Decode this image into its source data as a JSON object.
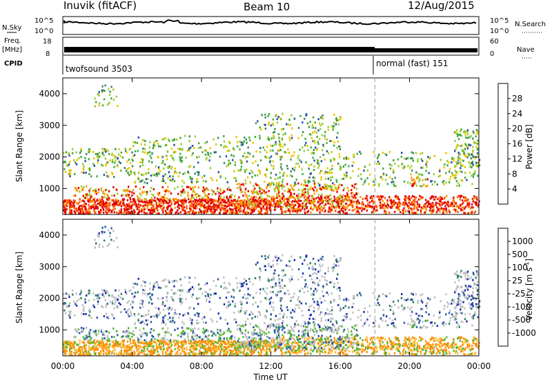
{
  "header": {
    "station": "Inuvik (fitACF)",
    "beam": "Beam 10",
    "date": "12/Aug/2015"
  },
  "top_strip": {
    "left_label": "N.Sky",
    "right_label": "N.Search",
    "ticks": [
      "10^5",
      "10^0"
    ],
    "right_ticks": [
      "10^5",
      "10^0"
    ]
  },
  "freq_strip": {
    "left_label_1": "Freq.",
    "left_label_2": "[MHz]",
    "ticks": [
      "18",
      "8"
    ],
    "right_label": "Nave",
    "right_ticks": [
      "60",
      "0"
    ]
  },
  "cpid_strip": {
    "label": "CPID",
    "modes": [
      "twofsound 3503",
      "normal (fast) 151"
    ]
  },
  "colors": {
    "power": [
      "#1010e0",
      "#2a4fa8",
      "#3c8a5c",
      "#3cae3c",
      "#9acd32",
      "#e8c400",
      "#ff9900",
      "#ff5500",
      "#e00000"
    ],
    "velocity": [
      "#1a2fb0",
      "#2a58a8",
      "#2f7e6a",
      "#55b830",
      "#bfbfbf",
      "#ffbb33",
      "#ff8c00",
      "#ff4400",
      "#e00000"
    ]
  },
  "chart_data": [
    {
      "type": "heatmap",
      "title": "",
      "xlabel": "Time UT",
      "ylabel": "Slant Range [km]",
      "x_ticks": [
        "00:00",
        "04:00",
        "08:00",
        "12:00",
        "16:00",
        "20:00",
        "00:00"
      ],
      "xlim_hours": [
        0,
        24
      ],
      "y_ticks": [
        1000,
        2000,
        3000,
        4000
      ],
      "ylim": [
        180,
        4500
      ],
      "colorbar": {
        "label": "Power [dB]",
        "ticks": [
          "28",
          "24",
          "20",
          "16",
          "12",
          "8",
          "4"
        ],
        "range": [
          0,
          30
        ]
      },
      "mode_change_hour": 18.0
    },
    {
      "type": "heatmap",
      "title": "",
      "xlabel": "Time UT",
      "ylabel": "Slant Range [km]",
      "x_ticks": [
        "00:00",
        "04:00",
        "08:00",
        "12:00",
        "16:00",
        "20:00",
        "00:00"
      ],
      "xlim_hours": [
        0,
        24
      ],
      "y_ticks": [
        1000,
        2000,
        3000,
        4000
      ],
      "ylim": [
        180,
        4500
      ],
      "colorbar": {
        "label": "Velocity [m s",
        "label_sup": "-1",
        "label_end": "]",
        "ticks": [
          "1000",
          "500",
          "100",
          "25",
          "-25",
          "-100",
          "-500",
          "-1000"
        ],
        "range": [
          -1000,
          1000
        ]
      },
      "mode_change_hour": 18.0
    }
  ]
}
